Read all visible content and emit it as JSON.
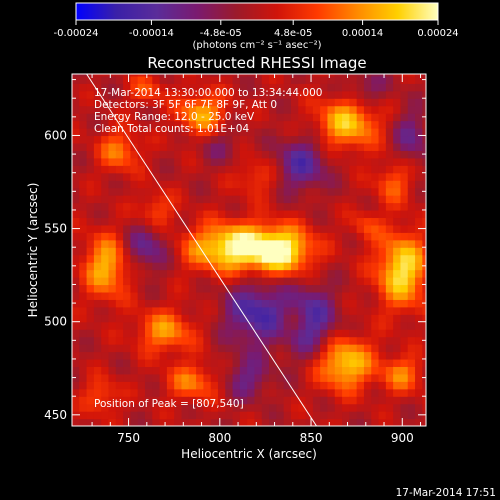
{
  "colorbar": {
    "ticks": [
      "-0.00024",
      "-0.00014",
      "-4.8e-05",
      "4.8e-05",
      "0.00014",
      "0.00024"
    ],
    "tick_values": [
      -0.00024,
      -0.00014,
      -4.8e-05,
      4.8e-05,
      0.00014,
      0.00024
    ],
    "range": [
      -0.00024,
      0.00024
    ],
    "units_label": "(photons cm⁻² s⁻¹ asec⁻²)",
    "colors": [
      "#0000ff",
      "#3a20a8",
      "#5a2c9a",
      "#7a1a70",
      "#9c1a2a",
      "#d0140a",
      "#ff3a00",
      "#ff8a00",
      "#ffd000",
      "#ffffc0"
    ]
  },
  "chart_data": {
    "type": "heatmap",
    "title": "Reconstructed RHESSI Image",
    "xlabel": "Heliocentric X (arcsec)",
    "ylabel": "Heliocentric Y (arcsec)",
    "xlim": [
      719,
      913
    ],
    "ylim": [
      444,
      633
    ],
    "xticks": [
      750,
      800,
      850,
      900
    ],
    "yticks": [
      450,
      500,
      550,
      600
    ],
    "grid": false,
    "info_lines": [
      "17-Mar-2014 13:30:00.000 to 13:34:44.000",
      "Detectors: 3F 5F 6F 7F 8F 9F, Att 0",
      "Energy Range: 12.0 - 25.0 keV",
      "Clean    Total counts: 1.01E+04"
    ],
    "peak_label": "Position of Peak = [807,540]",
    "peak_position": [
      807,
      540
    ],
    "limb_line": [
      [
        727,
        633
      ],
      [
        853,
        444
      ]
    ],
    "sources": [
      {
        "x": 808,
        "y": 540,
        "amp": 0.00024,
        "sx": 18,
        "sy": 9
      },
      {
        "x": 835,
        "y": 538,
        "amp": 0.00019,
        "sx": 12,
        "sy": 9
      },
      {
        "x": 900,
        "y": 528,
        "amp": 0.00021,
        "sx": 10,
        "sy": 14
      },
      {
        "x": 870,
        "y": 607,
        "amp": 0.00018,
        "sx": 12,
        "sy": 10
      },
      {
        "x": 790,
        "y": 612,
        "amp": 0.00016,
        "sx": 9,
        "sy": 8
      },
      {
        "x": 738,
        "y": 530,
        "amp": 0.00017,
        "sx": 9,
        "sy": 12
      },
      {
        "x": 770,
        "y": 495,
        "amp": 0.00014,
        "sx": 11,
        "sy": 8
      },
      {
        "x": 785,
        "y": 468,
        "amp": 0.00012,
        "sx": 10,
        "sy": 7
      },
      {
        "x": 868,
        "y": 478,
        "amp": 0.0002,
        "sx": 11,
        "sy": 10
      },
      {
        "x": 900,
        "y": 472,
        "amp": 0.00012,
        "sx": 8,
        "sy": 7
      },
      {
        "x": 745,
        "y": 592,
        "amp": 0.00012,
        "sx": 8,
        "sy": 8
      },
      {
        "x": 820,
        "y": 578,
        "amp": 8e-05,
        "sx": 8,
        "sy": 7
      },
      {
        "x": 765,
        "y": 560,
        "amp": 9e-05,
        "sx": 7,
        "sy": 7
      },
      {
        "x": 895,
        "y": 575,
        "amp": 0.0001,
        "sx": 7,
        "sy": 8
      },
      {
        "x": 735,
        "y": 460,
        "amp": 9e-05,
        "sx": 7,
        "sy": 7
      },
      {
        "x": 840,
        "y": 500,
        "amp": 6e-05,
        "sx": 6,
        "sy": 6
      },
      {
        "x": 880,
        "y": 552,
        "amp": 7e-05,
        "sx": 6,
        "sy": 6
      },
      {
        "x": 760,
        "y": 625,
        "amp": 8e-05,
        "sx": 7,
        "sy": 6
      },
      {
        "x": 820,
        "y": 505,
        "amp": -0.00016,
        "sx": 12,
        "sy": 12
      },
      {
        "x": 850,
        "y": 500,
        "amp": -0.00015,
        "sx": 10,
        "sy": 14
      },
      {
        "x": 845,
        "y": 585,
        "amp": -0.00014,
        "sx": 10,
        "sy": 10
      },
      {
        "x": 760,
        "y": 540,
        "amp": -0.00012,
        "sx": 9,
        "sy": 9
      },
      {
        "x": 880,
        "y": 625,
        "amp": -8e-05,
        "sx": 9,
        "sy": 7
      },
      {
        "x": 905,
        "y": 600,
        "amp": -0.0001,
        "sx": 7,
        "sy": 10
      },
      {
        "x": 815,
        "y": 470,
        "amp": -0.0001,
        "sx": 9,
        "sy": 8
      },
      {
        "x": 800,
        "y": 595,
        "amp": -6e-05,
        "sx": 8,
        "sy": 7
      }
    ]
  },
  "footer": {
    "timestamp": "17-Mar-2014 17:51"
  }
}
